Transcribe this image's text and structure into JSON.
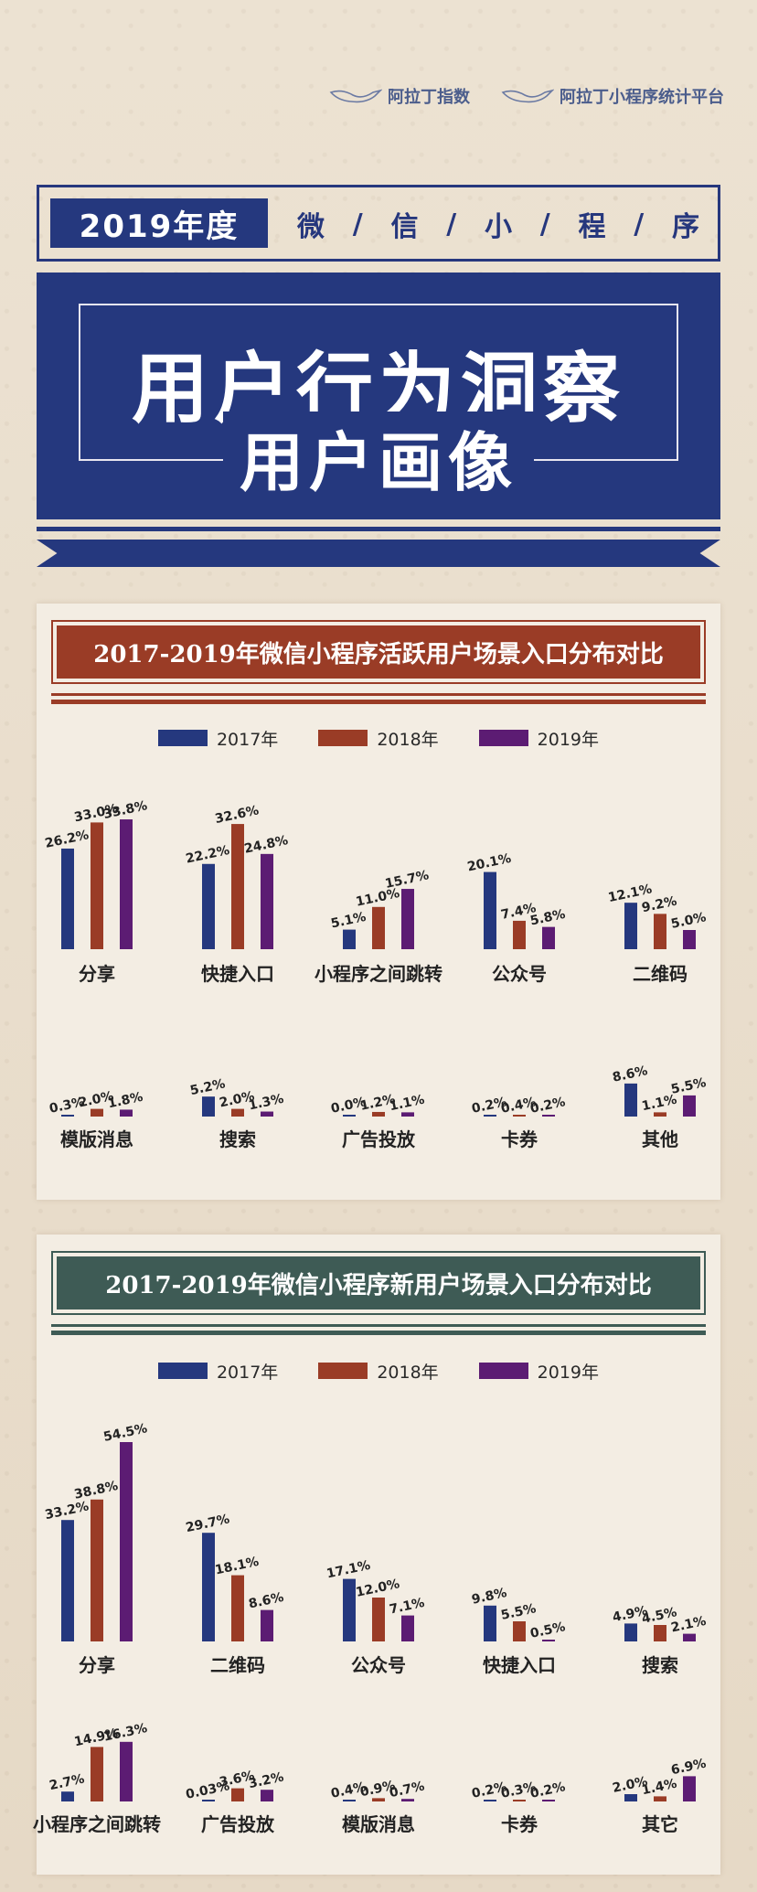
{
  "brands": [
    "阿拉丁指数",
    "阿拉丁小程序统计平台"
  ],
  "header": {
    "year_label": "2019年度",
    "subtitle_chars": [
      "微",
      "/",
      "信",
      "/",
      "小",
      "/",
      "程",
      "/",
      "序"
    ],
    "title": "用户行为洞察",
    "subtitle": "用户画像"
  },
  "colors": {
    "y2017": "#25387e",
    "y2018": "#9a3c26",
    "y2019": "#5c1c73",
    "navy": "#25387e",
    "rust": "#9a3c26",
    "green": "#3e5b55"
  },
  "chart_data": [
    {
      "type": "bar",
      "title": "2017-2019年微信小程序活跃用户场景入口分布对比",
      "legend": [
        "2017年",
        "2018年",
        "2019年"
      ],
      "categories": [
        "分享",
        "快捷入口",
        "小程序之间跳转",
        "公众号",
        "二维码",
        "模版消息",
        "搜索",
        "广告投放",
        "卡券",
        "其他"
      ],
      "series": [
        {
          "name": "2017年",
          "values": [
            26.2,
            22.2,
            5.1,
            20.1,
            12.1,
            0.3,
            5.2,
            0.0,
            0.2,
            8.6
          ],
          "labels": [
            "26.2%",
            "22.2%",
            "5.1%",
            "20.1%",
            "12.1%",
            "0.3%",
            "5.2%",
            "0.0%",
            "0.2%",
            "8.6%"
          ]
        },
        {
          "name": "2018年",
          "values": [
            33.0,
            32.6,
            11.0,
            7.4,
            9.2,
            2.0,
            2.0,
            1.2,
            0.4,
            1.1
          ],
          "labels": [
            "33.0%",
            "32.6%",
            "11.0%",
            "7.4%",
            "9.2%",
            "2.0%",
            "2.0%",
            "1.2%",
            "0.4%",
            "1.1%"
          ]
        },
        {
          "name": "2019年",
          "values": [
            33.8,
            24.8,
            15.7,
            5.8,
            5.0,
            1.8,
            1.3,
            1.1,
            0.2,
            5.5
          ],
          "labels": [
            "33.8%",
            "24.8%",
            "15.7%",
            "5.8%",
            "5.0%",
            "1.8%",
            "1.3%",
            "1.1%",
            "0.2%",
            "5.5%"
          ]
        }
      ]
    },
    {
      "type": "bar",
      "title": "2017-2019年微信小程序新用户场景入口分布对比",
      "legend": [
        "2017年",
        "2018年",
        "2019年"
      ],
      "categories": [
        "分享",
        "二维码",
        "公众号",
        "快捷入口",
        "搜索",
        "小程序之间跳转",
        "广告投放",
        "模版消息",
        "卡券",
        "其它"
      ],
      "series": [
        {
          "name": "2017年",
          "values": [
            33.2,
            29.7,
            17.1,
            9.8,
            4.9,
            2.7,
            0.03,
            0.4,
            0.2,
            2.0
          ],
          "labels": [
            "33.2%",
            "29.7%",
            "17.1%",
            "9.8%",
            "4.9%",
            "2.7%",
            "0.03%",
            "0.4%",
            "0.2%",
            "2.0%"
          ]
        },
        {
          "name": "2018年",
          "values": [
            38.8,
            18.1,
            12.0,
            5.5,
            4.5,
            14.9,
            3.6,
            0.9,
            0.3,
            1.4
          ],
          "labels": [
            "38.8%",
            "18.1%",
            "12.0%",
            "5.5%",
            "4.5%",
            "14.9%",
            "3.6%",
            "0.9%",
            "0.3%",
            "1.4%"
          ]
        },
        {
          "name": "2019年",
          "values": [
            54.5,
            8.6,
            7.1,
            0.5,
            2.1,
            16.3,
            3.2,
            0.7,
            0.2,
            6.9
          ],
          "labels": [
            "54.5%",
            "8.6%",
            "7.1%",
            "0.5%",
            "2.1%",
            "16.3%",
            "3.2%",
            "0.7%",
            "0.2%",
            "6.9%"
          ]
        }
      ]
    }
  ]
}
